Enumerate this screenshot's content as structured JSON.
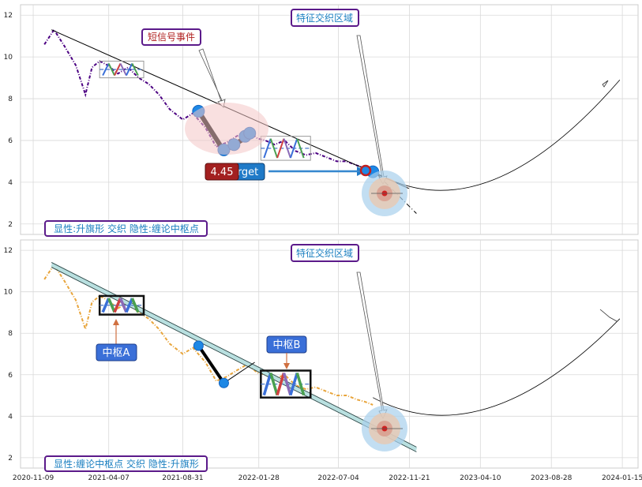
{
  "chart_data": [
    {
      "type": "line",
      "panel": "top",
      "grid": true,
      "ylim": [
        1.5,
        12.5
      ],
      "yticks": [
        2,
        4,
        6,
        8,
        10,
        12
      ],
      "series": [
        {
          "color": "#4b0082",
          "style": "dash-dot",
          "x": [
            "2020-12-01",
            "2020-12-20",
            "2021-01-10",
            "2021-02-01",
            "2021-02-20",
            "2021-03-05",
            "2021-03-20",
            "2021-04-05",
            "2021-04-25",
            "2021-05-15",
            "2021-06-05",
            "2021-06-25",
            "2021-07-15",
            "2021-08-05",
            "2021-08-31",
            "2021-09-20",
            "2021-10-15",
            "2021-11-05",
            "2021-11-25",
            "2021-12-15",
            "2022-01-05",
            "2022-01-25",
            "2022-02-10",
            "2022-02-28",
            "2022-03-20",
            "2022-04-10",
            "2022-05-01",
            "2022-05-20",
            "2022-06-10",
            "2022-07-01",
            "2022-07-20",
            "2022-08-10",
            "2022-08-25",
            "2022-09-10"
          ],
          "y": [
            10.6,
            11.3,
            10.5,
            9.6,
            8.2,
            9.5,
            9.8,
            9.6,
            9.2,
            9.5,
            9.0,
            8.7,
            8.2,
            7.5,
            7.0,
            7.3,
            6.6,
            5.7,
            5.9,
            6.2,
            6.5,
            6.1,
            6.0,
            5.8,
            6.0,
            5.5,
            5.3,
            5.4,
            5.2,
            5.0,
            5.0,
            4.8,
            4.7,
            4.55
          ]
        },
        {
          "color": "#000000",
          "style": "solid",
          "x": [
            "2020-12-15",
            "2022-11-20"
          ],
          "y": [
            11.3,
            3.7
          ]
        },
        {
          "color": "#000000",
          "style": "dashdot",
          "x": [
            "2022-09-05",
            "2022-12-05"
          ],
          "y": [
            4.7,
            2.5
          ]
        },
        {
          "color": "#000000",
          "style": "thick",
          "x": [
            "2021-10-01",
            "2021-11-20"
          ],
          "y": [
            7.4,
            5.5
          ]
        },
        {
          "color": "#000000",
          "style": "thick",
          "x": [
            "2021-11-20",
            "2022-01-20"
          ],
          "y": [
            5.5,
            6.4
          ]
        },
        {
          "color": "#000000",
          "style": "solid-thin",
          "x": [
            "2022-09-20",
            "2024-01-10"
          ],
          "y": [
            4.4,
            8.9
          ]
        }
      ],
      "points": [
        {
          "x": "2021-10-01",
          "y": 7.4,
          "color": "#1e88e5"
        },
        {
          "x": "2021-11-20",
          "y": 5.55,
          "color": "#1e88e5"
        },
        {
          "x": "2021-12-10",
          "y": 5.8,
          "color": "#1e88e5"
        },
        {
          "x": "2022-01-01",
          "y": 6.2,
          "color": "#1e88e5"
        },
        {
          "x": "2022-01-10",
          "y": 6.35,
          "color": "#1e88e5"
        },
        {
          "x": "2022-09-10",
          "y": 4.5,
          "color": "#1e88e5"
        }
      ],
      "annotations": {
        "callout_top": "短信号事件",
        "region_label": "特征交织区域",
        "price_badge": "4.45",
        "target_badge": "rget",
        "bottom_left_label": "显性:升旗形 交织 隐性:缠论中枢点"
      },
      "boxes": [
        {
          "x0": "2021-03-20",
          "x1": "2021-06-15",
          "y0": 9.0,
          "y1": 9.8
        },
        {
          "x0": "2022-02-01",
          "x1": "2022-05-10",
          "y0": 5.05,
          "y1": 6.2
        }
      ]
    },
    {
      "type": "line",
      "panel": "bottom",
      "grid": true,
      "ylim": [
        1.5,
        12.5
      ],
      "yticks": [
        2,
        4,
        6,
        8,
        10,
        12
      ],
      "xticks": [
        "2020-11-09",
        "2021-04-07",
        "2021-08-31",
        "2022-01-28",
        "2022-07-04",
        "2022-11-21",
        "2023-04-10",
        "2023-08-28",
        "2024-01-15"
      ],
      "series": [
        {
          "color": "#e8a43a",
          "style": "dash-dot",
          "x": [
            "2020-12-01",
            "2020-12-20",
            "2021-01-10",
            "2021-02-01",
            "2021-02-20",
            "2021-03-05",
            "2021-03-20",
            "2021-04-05",
            "2021-04-25",
            "2021-05-15",
            "2021-06-05",
            "2021-06-25",
            "2021-07-15",
            "2021-08-05",
            "2021-08-31",
            "2021-09-20",
            "2021-10-15",
            "2021-11-05",
            "2021-11-25",
            "2021-12-15",
            "2022-01-05",
            "2022-01-25",
            "2022-02-10",
            "2022-02-28",
            "2022-03-20",
            "2022-04-10",
            "2022-05-01",
            "2022-05-20",
            "2022-06-10",
            "2022-07-01",
            "2022-07-20",
            "2022-08-10",
            "2022-08-25",
            "2022-09-10"
          ],
          "y": [
            10.6,
            11.3,
            10.5,
            9.6,
            8.2,
            9.5,
            9.8,
            9.6,
            9.2,
            9.5,
            9.0,
            8.7,
            8.2,
            7.5,
            7.0,
            7.3,
            6.6,
            5.7,
            5.9,
            6.2,
            6.5,
            6.1,
            6.0,
            5.8,
            6.0,
            5.5,
            5.3,
            5.4,
            5.2,
            5.0,
            5.0,
            4.8,
            4.7,
            4.55
          ]
        },
        {
          "color": "#2f4f4f",
          "style": "channel",
          "x": [
            "2020-12-15",
            "2022-12-05"
          ],
          "y": [
            11.3,
            2.4
          ]
        },
        {
          "color": "#000000",
          "style": "thick",
          "x": [
            "2021-10-01",
            "2021-11-20"
          ],
          "y": [
            7.4,
            5.6
          ]
        },
        {
          "color": "#000000",
          "style": "solid",
          "x": [
            "2021-11-20",
            "2022-01-20"
          ],
          "y": [
            5.6,
            6.6
          ]
        },
        {
          "color": "#000000",
          "style": "solid-thin",
          "x": [
            "2022-09-10",
            "2024-01-10"
          ],
          "y": [
            4.9,
            8.7
          ]
        }
      ],
      "points": [
        {
          "x": "2021-10-01",
          "y": 7.4,
          "color": "#1e88e5"
        },
        {
          "x": "2021-11-20",
          "y": 5.6,
          "color": "#1e88e5"
        }
      ],
      "annotations": {
        "label_a": "中枢A",
        "label_b": "中枢B",
        "region_label": "特征交织区域",
        "bottom_left_label": "显性:缠论中枢点 交织 隐性:升旗形"
      },
      "boxes": [
        {
          "x0": "2021-03-20",
          "x1": "2021-06-15",
          "y0": 8.9,
          "y1": 9.8
        },
        {
          "x0": "2022-02-01",
          "x1": "2022-05-10",
          "y0": 4.9,
          "y1": 6.2
        }
      ]
    }
  ]
}
